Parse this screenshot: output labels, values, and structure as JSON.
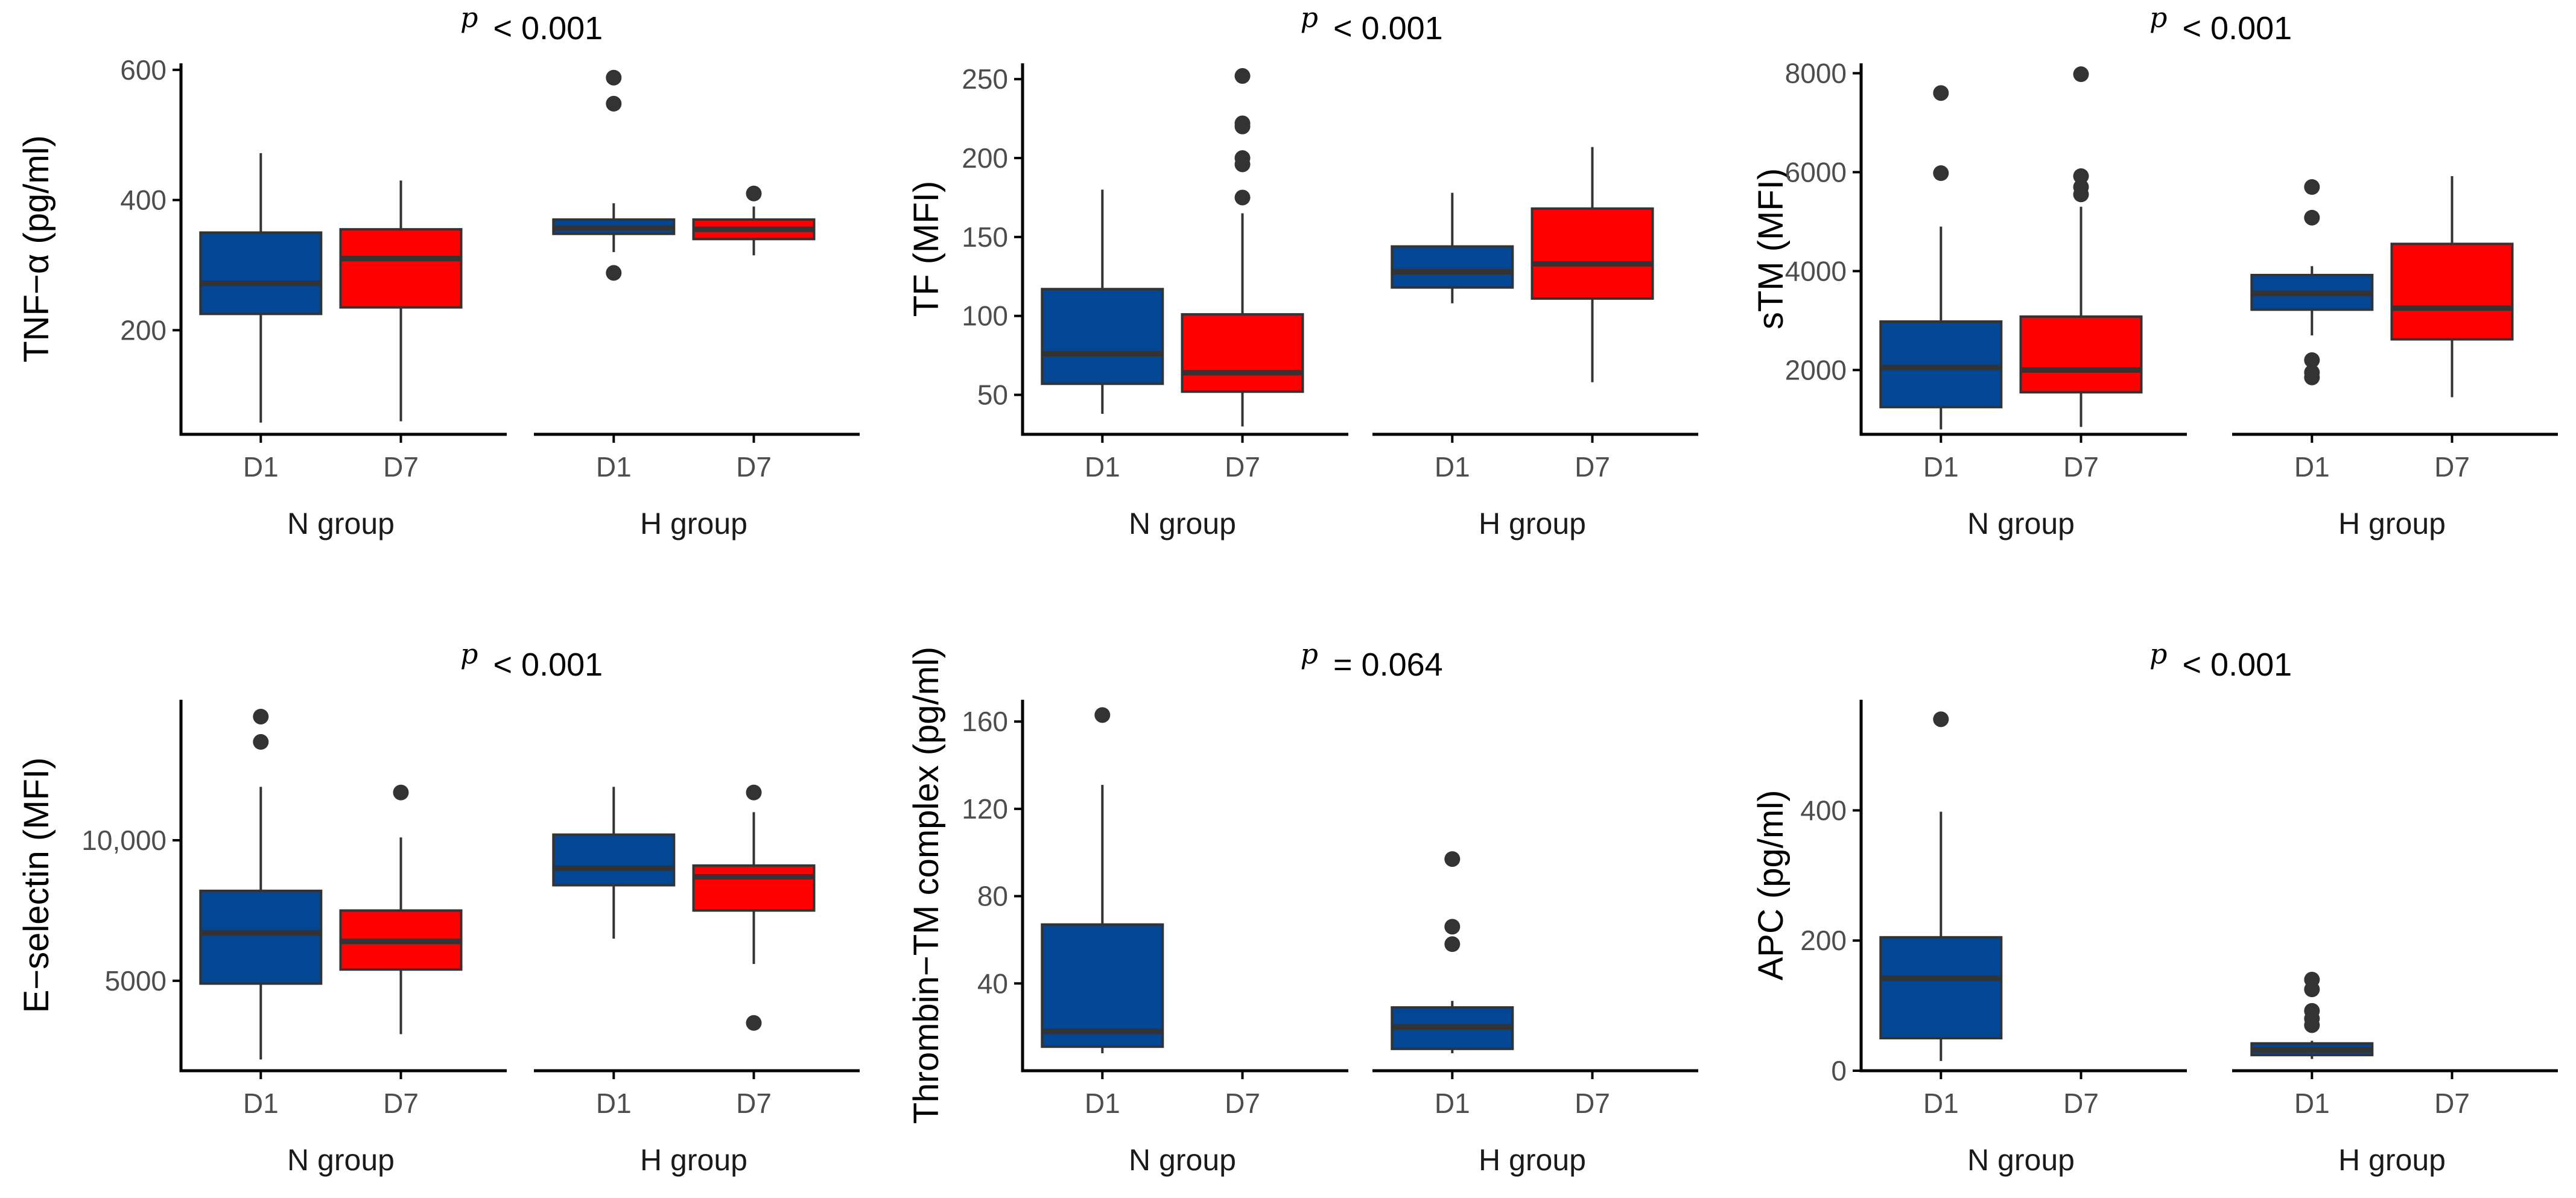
{
  "colors": {
    "D1": "#034694",
    "D7": "#ff0000",
    "axis": "#000000",
    "box_line": "#333333"
  },
  "chart_data": [
    {
      "type": "boxplot",
      "id": "tnf",
      "p_symbol": "p",
      "p_label": "< 0.001",
      "ylabel": "TNF−α (pg/ml)",
      "ylim": [
        40,
        610
      ],
      "yticks": [
        200,
        400,
        600
      ],
      "ytick_labels": [
        "200",
        "400",
        "600"
      ],
      "facets": [
        "N group",
        "H group"
      ],
      "categories": [
        "D1",
        "D7"
      ],
      "boxes": [
        {
          "facet": "N group",
          "cat": "D1",
          "q1": 225,
          "med": 272,
          "q3": 350,
          "low": 58,
          "high": 472,
          "outliers": []
        },
        {
          "facet": "N group",
          "cat": "D7",
          "q1": 235,
          "med": 310,
          "q3": 355,
          "low": 60,
          "high": 430,
          "outliers": []
        },
        {
          "facet": "H group",
          "cat": "D1",
          "q1": 348,
          "med": 357,
          "q3": 370,
          "low": 320,
          "high": 395,
          "outliers": [
            588,
            548,
            288
          ]
        },
        {
          "facet": "H group",
          "cat": "D7",
          "q1": 340,
          "med": 355,
          "q3": 370,
          "low": 315,
          "high": 390,
          "outliers": [
            410
          ]
        }
      ]
    },
    {
      "type": "boxplot",
      "id": "tf",
      "p_symbol": "p",
      "p_label": "< 0.001",
      "ylabel": "TF (MFI)",
      "ylim": [
        25,
        260
      ],
      "yticks": [
        50,
        100,
        150,
        200,
        250
      ],
      "ytick_labels": [
        "50",
        "100",
        "150",
        "200",
        "250"
      ],
      "facets": [
        "N group",
        "H group"
      ],
      "categories": [
        "D1",
        "D7"
      ],
      "boxes": [
        {
          "facet": "N group",
          "cat": "D1",
          "q1": 57,
          "med": 76,
          "q3": 117,
          "low": 38,
          "high": 180,
          "outliers": []
        },
        {
          "facet": "N group",
          "cat": "D7",
          "q1": 52,
          "med": 64,
          "q3": 101,
          "low": 30,
          "high": 165,
          "outliers": [
            252,
            222,
            220,
            200,
            196,
            175
          ]
        },
        {
          "facet": "H group",
          "cat": "D1",
          "q1": 118,
          "med": 128,
          "q3": 144,
          "low": 108,
          "high": 178,
          "outliers": []
        },
        {
          "facet": "H group",
          "cat": "D7",
          "q1": 111,
          "med": 133,
          "q3": 168,
          "low": 58,
          "high": 207,
          "outliers": []
        }
      ]
    },
    {
      "type": "boxplot",
      "id": "stm",
      "p_symbol": "p",
      "p_label": "< 0.001",
      "ylabel": "sTM (MFI)",
      "ylim": [
        700,
        8200
      ],
      "yticks": [
        2000,
        4000,
        6000,
        8000
      ],
      "ytick_labels": [
        "2000",
        "4000",
        "6000",
        "8000"
      ],
      "facets": [
        "N group",
        "H group"
      ],
      "categories": [
        "D1",
        "D7"
      ],
      "boxes": [
        {
          "facet": "N group",
          "cat": "D1",
          "q1": 1250,
          "med": 2050,
          "q3": 2980,
          "low": 800,
          "high": 4900,
          "outliers": [
            7600,
            5980
          ]
        },
        {
          "facet": "N group",
          "cat": "D7",
          "q1": 1550,
          "med": 2000,
          "q3": 3080,
          "low": 850,
          "high": 5300,
          "outliers": [
            7980,
            5920,
            5700,
            5550
          ]
        },
        {
          "facet": "H group",
          "cat": "D1",
          "q1": 3220,
          "med": 3550,
          "q3": 3920,
          "low": 2700,
          "high": 4100,
          "outliers": [
            5700,
            5080,
            2200,
            1950,
            1850
          ]
        },
        {
          "facet": "H group",
          "cat": "D7",
          "q1": 2620,
          "med": 3250,
          "q3": 4550,
          "low": 1450,
          "high": 5920,
          "outliers": []
        }
      ]
    },
    {
      "type": "boxplot",
      "id": "esel",
      "p_symbol": "p",
      "p_label": "< 0.001",
      "ylabel": "E−selectin (MFI)",
      "ylim": [
        1800,
        15000
      ],
      "yticks": [
        5000,
        10000
      ],
      "ytick_labels": [
        "5000",
        "10,000"
      ],
      "facets": [
        "N group",
        "H group"
      ],
      "categories": [
        "D1",
        "D7"
      ],
      "boxes": [
        {
          "facet": "N group",
          "cat": "D1",
          "q1": 4900,
          "med": 6700,
          "q3": 8200,
          "low": 2200,
          "high": 11900,
          "outliers": [
            14400,
            13500
          ]
        },
        {
          "facet": "N group",
          "cat": "D7",
          "q1": 5400,
          "med": 6400,
          "q3": 7500,
          "low": 3100,
          "high": 10100,
          "outliers": [
            11700
          ]
        },
        {
          "facet": "H group",
          "cat": "D1",
          "q1": 8400,
          "med": 9000,
          "q3": 10200,
          "low": 6500,
          "high": 11900,
          "outliers": []
        },
        {
          "facet": "H group",
          "cat": "D7",
          "q1": 7500,
          "med": 8700,
          "q3": 9100,
          "low": 5600,
          "high": 11000,
          "outliers": [
            11700,
            3500
          ]
        }
      ]
    },
    {
      "type": "boxplot",
      "id": "thrombin",
      "p_symbol": "p",
      "p_label": "= 0.064",
      "ylabel": "Thrombin−TM complex (pg/ml)",
      "ylim": [
        0,
        170
      ],
      "yticks": [
        40,
        80,
        120,
        160
      ],
      "ytick_labels": [
        "40",
        "80",
        "120",
        "160"
      ],
      "facets": [
        "N group",
        "H group"
      ],
      "categories": [
        "D1",
        "D7"
      ],
      "boxes": [
        {
          "facet": "N group",
          "cat": "D1",
          "q1": 11,
          "med": 18,
          "q3": 67,
          "low": 8,
          "high": 131,
          "outliers": [
            163
          ]
        },
        {
          "facet": "H group",
          "cat": "D1",
          "q1": 10,
          "med": 20,
          "q3": 29,
          "low": 8,
          "high": 32,
          "outliers": [
            97,
            66,
            58
          ]
        }
      ]
    },
    {
      "type": "boxplot",
      "id": "apc",
      "p_symbol": "p",
      "p_label": "< 0.001",
      "ylabel": "APC (pg/ml)",
      "ylim": [
        0,
        570
      ],
      "yticks": [
        0,
        200,
        400
      ],
      "ytick_labels": [
        "0",
        "200",
        "400"
      ],
      "facets": [
        "N group",
        "H group"
      ],
      "categories": [
        "D1",
        "D7"
      ],
      "boxes": [
        {
          "facet": "N group",
          "cat": "D1",
          "q1": 50,
          "med": 142,
          "q3": 205,
          "low": 15,
          "high": 398,
          "outliers": [
            540
          ]
        },
        {
          "facet": "H group",
          "cat": "D1",
          "q1": 24,
          "med": 32,
          "q3": 42,
          "low": 18,
          "high": 46,
          "outliers": [
            140,
            125,
            92,
            80,
            70
          ]
        }
      ]
    }
  ]
}
